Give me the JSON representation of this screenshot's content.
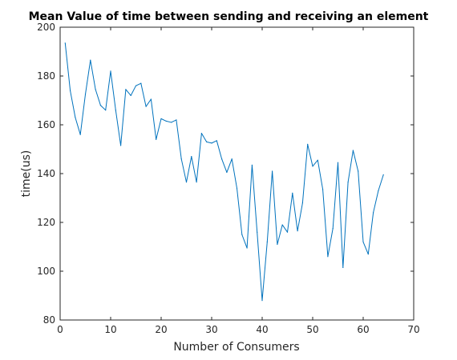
{
  "chart_data": {
    "type": "line",
    "title": "Mean Value of time between sending and receiving an element",
    "xlabel": "Number of Consumers",
    "ylabel": "time(us)",
    "xlim": [
      0,
      70
    ],
    "ylim": [
      80,
      200
    ],
    "xticks": [
      0,
      10,
      20,
      30,
      40,
      50,
      60,
      70
    ],
    "yticks": [
      80,
      100,
      120,
      140,
      160,
      180,
      200
    ],
    "grid": false,
    "series": [
      {
        "color": "#0072BD",
        "x": [
          1,
          2,
          3,
          4,
          5,
          6,
          7,
          8,
          9,
          10,
          11,
          12,
          13,
          14,
          15,
          16,
          17,
          18,
          19,
          20,
          21,
          22,
          23,
          24,
          25,
          26,
          27,
          28,
          29,
          30,
          31,
          32,
          33,
          34,
          35,
          36,
          37,
          38,
          39,
          40,
          41,
          42,
          43,
          44,
          45,
          46,
          47,
          48,
          49,
          50,
          51,
          52,
          53,
          54,
          55,
          56,
          57,
          58,
          59,
          60,
          61,
          62,
          63,
          64
        ],
        "y": [
          193.5,
          174,
          163,
          156,
          172.5,
          186.5,
          174.5,
          168,
          166,
          182,
          166,
          151.5,
          174.5,
          172,
          176,
          177,
          167.5,
          170.5,
          154,
          162.5,
          161.5,
          161,
          162,
          146,
          136.5,
          147,
          136.5,
          156.5,
          153,
          152.5,
          153.5,
          146,
          140.5,
          146,
          134,
          115,
          109.5,
          143.5,
          116,
          88,
          112,
          141,
          111,
          119,
          116,
          132,
          116.5,
          128,
          152,
          143,
          145.5,
          133.5,
          106,
          117.5,
          144.5,
          101.5,
          136.5,
          149.5,
          141,
          112,
          107,
          124,
          133,
          139.5
        ]
      }
    ]
  }
}
